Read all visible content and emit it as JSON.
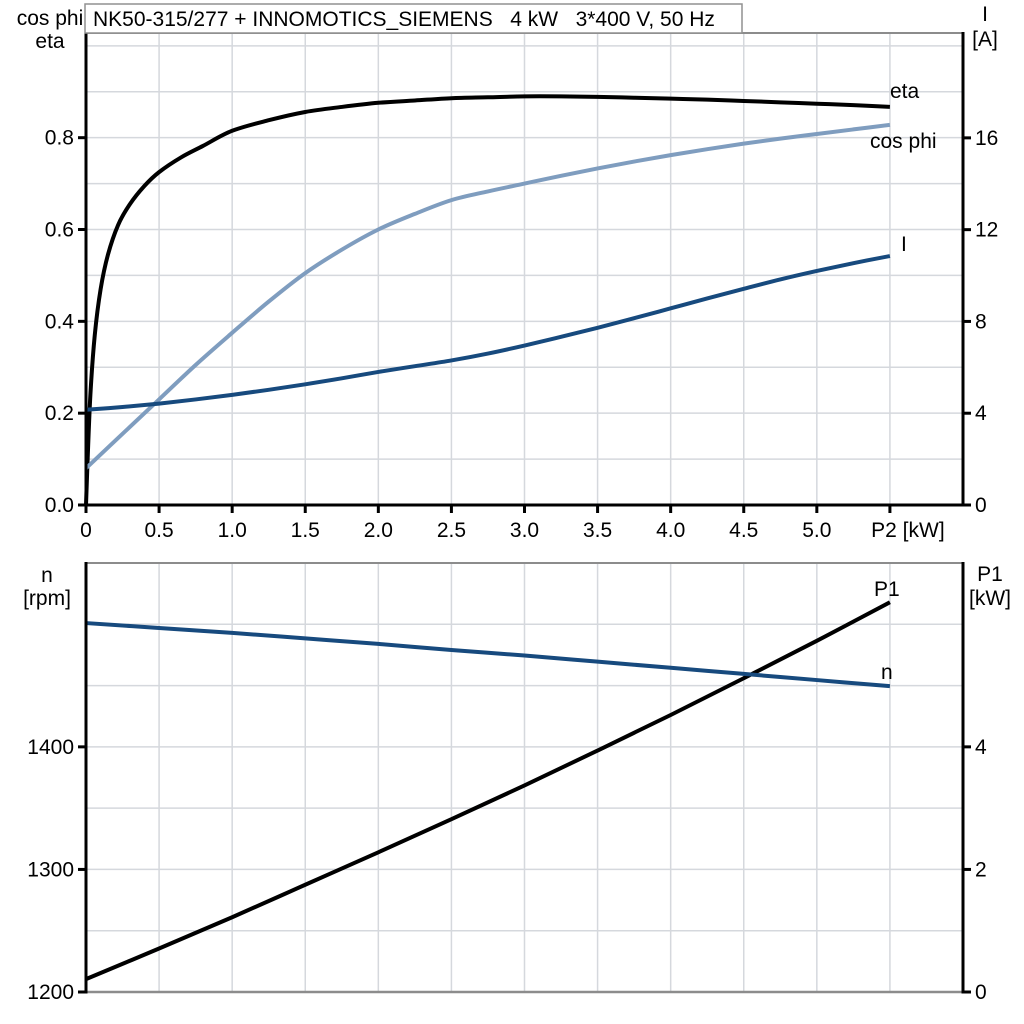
{
  "title_box": {
    "text": "NK50-315/277 + INNOMOTICS_SIEMENS   4 kW   3*400 V, 50 Hz"
  },
  "colors": {
    "curve_black": "#000000",
    "curve_light_blue": "#7f9dbf",
    "curve_dark_blue": "#174a7e",
    "grid": "#d5d8dd",
    "frame_gray": "#8c8c8c",
    "axis_black": "#000000",
    "title_border": "#919191",
    "background": "#ffffff"
  },
  "chart_data": [
    {
      "type": "line",
      "title": "",
      "xlabel": "P2 [kW]",
      "x_range": [
        0,
        6
      ],
      "x_grid_values": [
        0.5,
        1,
        1.5,
        2,
        2.5,
        3,
        3.5,
        4,
        4.5,
        5,
        5.5
      ],
      "x_tick_values": [
        0,
        0.5,
        1,
        1.5,
        2,
        2.5,
        3,
        3.5,
        4,
        4.5,
        5,
        5.5
      ],
      "x_tick_labels": [
        "0",
        "0.5",
        "1.0",
        "1.5",
        "2.0",
        "2.5",
        "3.0",
        "3.5",
        "4.0",
        "4.5",
        "5.0",
        "P2 [kW]"
      ],
      "left_axis": {
        "label_lines": [
          "cos phi",
          "eta"
        ],
        "range": [
          0,
          1.028
        ],
        "grid_values": [
          0.1,
          0.2,
          0.3,
          0.4,
          0.5,
          0.6,
          0.7,
          0.8,
          0.9,
          1.0
        ],
        "tick_values": [
          0,
          0.2,
          0.4,
          0.6,
          0.8
        ],
        "tick_labels": [
          "0.0",
          "0.2",
          "0.4",
          "0.6",
          "0.8"
        ]
      },
      "right_axis": {
        "label_lines": [
          "I",
          "[A]"
        ],
        "range": [
          0,
          20.57
        ],
        "tick_values": [
          0,
          4,
          8,
          12,
          16
        ],
        "tick_labels": [
          "0",
          "4",
          "8",
          "12",
          "16"
        ]
      },
      "series": [
        {
          "name": "eta",
          "axis": "left",
          "color_key": "curve_black",
          "points": [
            [
              0,
              0
            ],
            [
              0.01,
              0.09
            ],
            [
              0.03,
              0.24
            ],
            [
              0.06,
              0.37
            ],
            [
              0.1,
              0.47
            ],
            [
              0.15,
              0.545
            ],
            [
              0.22,
              0.61
            ],
            [
              0.3,
              0.655
            ],
            [
              0.4,
              0.695
            ],
            [
              0.5,
              0.725
            ],
            [
              0.65,
              0.757
            ],
            [
              0.8,
              0.782
            ],
            [
              1,
              0.815
            ],
            [
              1.25,
              0.838
            ],
            [
              1.5,
              0.856
            ],
            [
              1.75,
              0.867
            ],
            [
              2,
              0.876
            ],
            [
              2.25,
              0.881
            ],
            [
              2.5,
              0.886
            ],
            [
              2.75,
              0.888
            ],
            [
              3,
              0.89
            ],
            [
              3.25,
              0.89
            ],
            [
              3.5,
              0.889
            ],
            [
              3.75,
              0.887
            ],
            [
              4,
              0.885
            ],
            [
              4.25,
              0.883
            ],
            [
              4.5,
              0.88
            ],
            [
              4.75,
              0.877
            ],
            [
              5,
              0.874
            ],
            [
              5.25,
              0.871
            ],
            [
              5.5,
              0.867
            ]
          ]
        },
        {
          "name": "cos phi",
          "axis": "left",
          "color_key": "curve_light_blue",
          "points": [
            [
              0,
              0.08
            ],
            [
              0.25,
              0.155
            ],
            [
              0.5,
              0.23
            ],
            [
              0.75,
              0.305
            ],
            [
              1,
              0.375
            ],
            [
              1.25,
              0.443
            ],
            [
              1.5,
              0.505
            ],
            [
              1.75,
              0.556
            ],
            [
              2,
              0.6
            ],
            [
              2.25,
              0.634
            ],
            [
              2.5,
              0.664
            ],
            [
              2.75,
              0.683
            ],
            [
              3,
              0.7
            ],
            [
              3.25,
              0.717
            ],
            [
              3.5,
              0.733
            ],
            [
              3.75,
              0.748
            ],
            [
              4,
              0.762
            ],
            [
              4.25,
              0.775
            ],
            [
              4.5,
              0.787
            ],
            [
              4.75,
              0.798
            ],
            [
              5,
              0.808
            ],
            [
              5.25,
              0.818
            ],
            [
              5.5,
              0.828
            ]
          ]
        },
        {
          "name": "I",
          "axis": "right",
          "color_key": "curve_dark_blue",
          "points": [
            [
              0,
              4.15
            ],
            [
              0.25,
              4.27
            ],
            [
              0.5,
              4.42
            ],
            [
              0.75,
              4.6
            ],
            [
              1,
              4.8
            ],
            [
              1.25,
              5.02
            ],
            [
              1.5,
              5.26
            ],
            [
              1.75,
              5.52
            ],
            [
              2,
              5.8
            ],
            [
              2.25,
              6.05
            ],
            [
              2.5,
              6.3
            ],
            [
              2.75,
              6.6
            ],
            [
              3,
              6.95
            ],
            [
              3.25,
              7.33
            ],
            [
              3.5,
              7.72
            ],
            [
              3.75,
              8.14
            ],
            [
              4,
              8.57
            ],
            [
              4.25,
              9.0
            ],
            [
              4.5,
              9.42
            ],
            [
              4.75,
              9.83
            ],
            [
              5,
              10.2
            ],
            [
              5.25,
              10.54
            ],
            [
              5.5,
              10.85
            ]
          ]
        }
      ],
      "curve_labels": [
        {
          "text": "eta",
          "color_key": "curve_black"
        },
        {
          "text": "cos phi",
          "color_key": "curve_light_blue"
        },
        {
          "text": "I",
          "color_key": "curve_dark_blue"
        }
      ],
      "legend_position": "right-end-of-curves",
      "grid": true
    },
    {
      "type": "line",
      "title": "",
      "xlabel": "",
      "x_range": [
        0,
        6
      ],
      "x_grid_values": [
        0.5,
        1,
        1.5,
        2,
        2.5,
        3,
        3.5,
        4,
        4.5,
        5,
        5.5
      ],
      "x_tick_values": [],
      "x_tick_labels": [],
      "left_axis": {
        "label_lines": [
          "n",
          "[rpm]"
        ],
        "range": [
          1200,
          1550
        ],
        "grid_values": [
          1250,
          1300,
          1350,
          1400,
          1450,
          1500
        ],
        "tick_values": [
          1200,
          1300,
          1400
        ],
        "tick_labels": [
          "1200",
          "1300",
          "1400"
        ]
      },
      "right_axis": {
        "label_lines": [
          "P1",
          "[kW]"
        ],
        "range": [
          0,
          7
        ],
        "tick_values": [
          0,
          2,
          4
        ],
        "tick_labels": [
          "0",
          "2",
          "4"
        ]
      },
      "series": [
        {
          "name": "P1",
          "axis": "right",
          "color_key": "curve_black",
          "points": [
            [
              0,
              0.21
            ],
            [
              0.5,
              0.71
            ],
            [
              1,
              1.22
            ],
            [
              1.5,
              1.75
            ],
            [
              2,
              2.28
            ],
            [
              2.5,
              2.82
            ],
            [
              3,
              3.37
            ],
            [
              3.5,
              3.94
            ],
            [
              4,
              4.52
            ],
            [
              4.5,
              5.12
            ],
            [
              5,
              5.73
            ],
            [
              5.5,
              6.36
            ]
          ]
        },
        {
          "name": "n",
          "axis": "left",
          "color_key": "curve_dark_blue",
          "points": [
            [
              0,
              1501
            ],
            [
              0.5,
              1497
            ],
            [
              1,
              1493
            ],
            [
              1.5,
              1488.5
            ],
            [
              2,
              1484
            ],
            [
              2.5,
              1479
            ],
            [
              3,
              1474.5
            ],
            [
              3.5,
              1469.5
            ],
            [
              4,
              1464.5
            ],
            [
              4.5,
              1459.5
            ],
            [
              5,
              1454.5
            ],
            [
              5.5,
              1449.5
            ]
          ]
        }
      ],
      "curve_labels": [
        {
          "text": "P1",
          "color_key": "curve_black"
        },
        {
          "text": "n",
          "color_key": "curve_dark_blue"
        }
      ],
      "legend_position": "right-end-of-curves",
      "grid": true
    }
  ]
}
